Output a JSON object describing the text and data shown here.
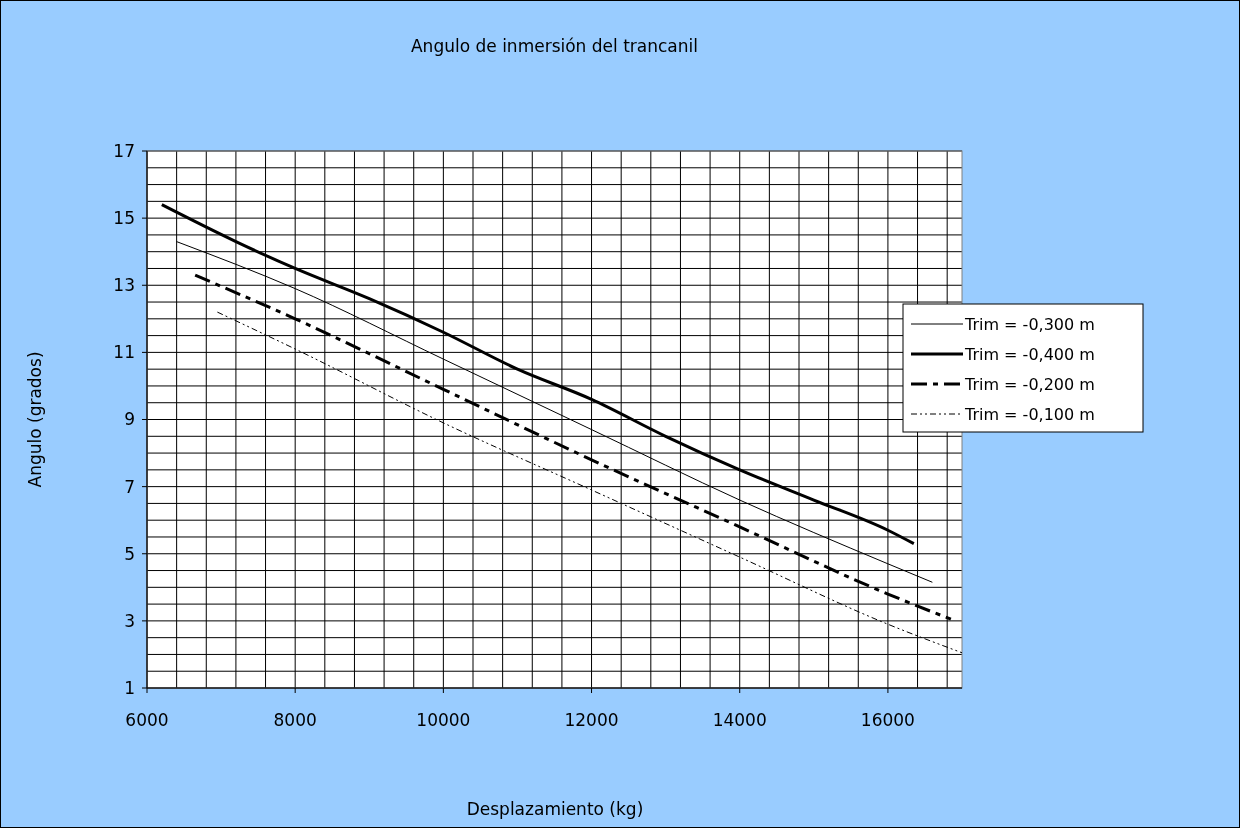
{
  "chart_data": {
    "type": "line",
    "title": "Angulo de inmersión del trancanil",
    "xlabel": "Desplazamiento (kg)",
    "ylabel": "Angulo (grados)",
    "xlim": [
      6000,
      17000
    ],
    "xticks": [
      6000,
      {
        "value": 6400,
        "label": null
      },
      {
        "value": 6800,
        "label": null
      },
      {
        "value": 7200,
        "label": null
      },
      {
        "value": 7600,
        "label": null
      },
      8000,
      {
        "value": 8400,
        "label": null
      },
      {
        "value": 8800,
        "label": null
      },
      {
        "value": 9200,
        "label": null
      },
      {
        "value": 9600,
        "label": null
      },
      10000,
      {
        "value": 10400,
        "label": null
      },
      {
        "value": 10800,
        "label": null
      },
      {
        "value": 11200,
        "label": null
      },
      {
        "value": 11600,
        "label": null
      },
      12000,
      {
        "value": 12400,
        "label": null
      },
      {
        "value": 12800,
        "label": null
      },
      {
        "value": 13200,
        "label": null
      },
      {
        "value": 13600,
        "label": null
      },
      14000,
      {
        "value": 14400,
        "label": null
      },
      {
        "value": 14800,
        "label": null
      },
      {
        "value": 15200,
        "label": null
      },
      {
        "value": 15600,
        "label": null
      },
      16000,
      {
        "value": 16400,
        "label": null
      },
      {
        "value": 16800,
        "label": null
      }
    ],
    "ylim": [
      1,
      17
    ],
    "yticks": [
      1,
      {
        "value": 1.5,
        "label": null
      },
      {
        "value": 2,
        "label": null
      },
      {
        "value": 2.5,
        "label": null
      },
      3,
      {
        "value": 3.5,
        "label": null
      },
      {
        "value": 4,
        "label": null
      },
      {
        "value": 4.5,
        "label": null
      },
      5,
      {
        "value": 5.5,
        "label": null
      },
      {
        "value": 6,
        "label": null
      },
      {
        "value": 6.5,
        "label": null
      },
      7,
      {
        "value": 7.5,
        "label": null
      },
      {
        "value": 8,
        "label": null
      },
      {
        "value": 8.5,
        "label": null
      },
      9,
      {
        "value": 9.5,
        "label": null
      },
      {
        "value": 10,
        "label": null
      },
      {
        "value": 10.5,
        "label": null
      },
      11,
      {
        "value": 11.5,
        "label": null
      },
      {
        "value": 12,
        "label": null
      },
      {
        "value": 12.5,
        "label": null
      },
      13,
      {
        "value": 13.5,
        "label": null
      },
      {
        "value": 14,
        "label": null
      },
      {
        "value": 14.5,
        "label": null
      },
      15,
      {
        "value": 15.5,
        "label": null
      },
      {
        "value": 16,
        "label": null
      },
      {
        "value": 16.5,
        "label": null
      },
      17
    ],
    "grid": true,
    "legend": "right",
    "series": [
      {
        "name": "Trim = -0,300 m",
        "color": "#000000",
        "line_style": "solid",
        "x": [
          6400,
          8000,
          10000,
          12000,
          14000,
          16000,
          16600
        ],
        "values": [
          14.3,
          12.9,
          10.8,
          8.7,
          6.6,
          4.7,
          4.15
        ]
      },
      {
        "name": "Trim = -0,400 m",
        "color": "#000000",
        "line_style": "solid",
        "x": [
          6200,
          7200,
          8000,
          9000,
          10000,
          11000,
          12000,
          13000,
          14000,
          15000,
          16000,
          16350
        ],
        "values": [
          15.4,
          14.3,
          13.5,
          12.6,
          11.6,
          10.5,
          9.6,
          8.5,
          7.5,
          6.6,
          5.7,
          5.3
        ]
      },
      {
        "name": "Trim = -0,200 m",
        "color": "#000000",
        "line_style": "dashed",
        "x": [
          6650,
          8000,
          10000,
          12000,
          14000,
          16000,
          16850
        ],
        "values": [
          13.3,
          12.0,
          9.9,
          7.8,
          5.8,
          3.8,
          3.05
        ]
      },
      {
        "name": "Trim = -0,100 m",
        "color": "#000000",
        "line_style": "dotted",
        "x": [
          6950,
          8000,
          10000,
          12000,
          14000,
          16000,
          17000
        ],
        "values": [
          12.2,
          11.1,
          8.9,
          6.9,
          4.9,
          2.9,
          2.05
        ]
      }
    ]
  }
}
